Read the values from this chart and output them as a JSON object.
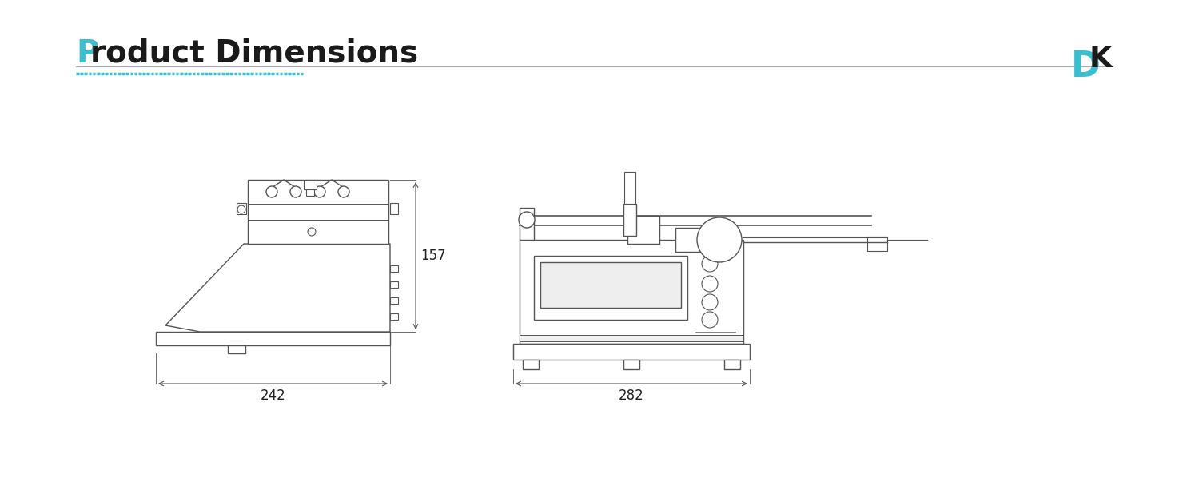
{
  "title_P": "P",
  "title_rest": "roduct Dimensions",
  "title_color_P": "#3bbfcf",
  "title_color_rest": "#1a1a1a",
  "title_fontsize": 28,
  "logo_D_color": "#3bbfcf",
  "logo_K_color": "#1a1a1a",
  "bg_color": "#ffffff",
  "dim_line_color": "#555555",
  "sketch_color": "#555555",
  "decoration_bar_color": "#3bbfcf",
  "separator_color": "#aaaaaa",
  "dim1_label": "242",
  "dim2_label": "157",
  "dim3_label": "282"
}
